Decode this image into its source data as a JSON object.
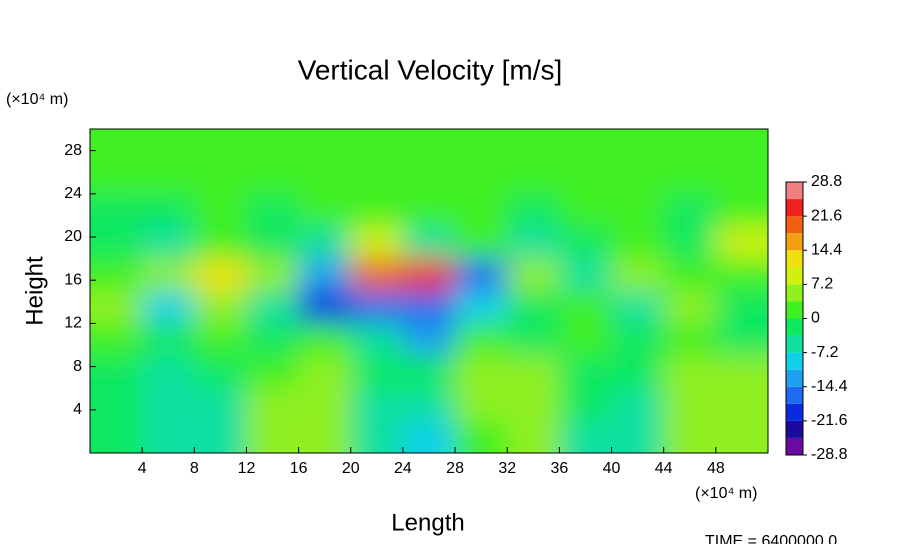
{
  "chart_data": {
    "type": "heatmap",
    "title": "Vertical Velocity [m/s]",
    "x_label": "Length",
    "y_label": "Height",
    "x_unit": "(×10⁴ m)",
    "y_unit": "(×10⁴ m)",
    "footer": "TIME = 6400000.0",
    "xlim": [
      0,
      52
    ],
    "ylim": [
      0,
      30
    ],
    "xticks": [
      4,
      8,
      12,
      16,
      20,
      24,
      28,
      32,
      36,
      40,
      44,
      48
    ],
    "yticks": [
      4,
      8,
      12,
      16,
      20,
      24,
      28
    ],
    "x": [
      2,
      6,
      10,
      14,
      18,
      22,
      26,
      30,
      34,
      38,
      42,
      46,
      50
    ],
    "y": [
      1.5,
      4.5,
      7.5,
      10.5,
      13.5,
      16.5,
      19.5,
      22.5,
      25.5,
      28.5
    ],
    "z": [
      [
        -3,
        -6,
        -5,
        4,
        6,
        -4,
        -8,
        3,
        5,
        -4,
        -5,
        5,
        6
      ],
      [
        -3,
        -6,
        -4,
        4,
        7,
        -4,
        -6,
        4,
        6,
        -3,
        -5,
        6,
        7
      ],
      [
        -2,
        -4,
        -2,
        3,
        5,
        -2,
        -3,
        4,
        5,
        -2,
        -3,
        5,
        5
      ],
      [
        2,
        -2,
        3,
        -3,
        1,
        -4,
        -12,
        3,
        -3,
        1,
        -2,
        2,
        -1
      ],
      [
        4,
        -10,
        5,
        -4,
        -20,
        -18,
        -15,
        -10,
        -3,
        3,
        -4,
        4,
        -2
      ],
      [
        3,
        6,
        14,
        4,
        -12,
        20,
        22,
        -18,
        4,
        -5,
        6,
        3,
        2
      ],
      [
        -3,
        -4,
        1,
        -2,
        -5,
        10,
        -6,
        3,
        -4,
        -2,
        1,
        -3,
        8
      ],
      [
        -1,
        -1,
        0,
        -1,
        1,
        1,
        0,
        1,
        -1,
        0,
        1,
        -1,
        0
      ],
      [
        1,
        1,
        1,
        1,
        1,
        1,
        1,
        1,
        1,
        1,
        1,
        1,
        1
      ],
      [
        1,
        1,
        1,
        1,
        1,
        1,
        1,
        1,
        1,
        1,
        1,
        1,
        1
      ]
    ],
    "clim": [
      -28.8,
      28.8
    ],
    "cticks": [
      28.8,
      21.6,
      14.4,
      7.2,
      0,
      -7.2,
      -14.4,
      -21.6,
      -28.8
    ],
    "colorscale": [
      "#6a0aa0",
      "#1a0aa0",
      "#0a2ae0",
      "#1e6af0",
      "#1ea0f0",
      "#10d0e8",
      "#10e0a0",
      "#10e860",
      "#40f020",
      "#90f020",
      "#d0f010",
      "#f0e010",
      "#f0a010",
      "#f06010",
      "#f02020",
      "#f08080"
    ]
  }
}
